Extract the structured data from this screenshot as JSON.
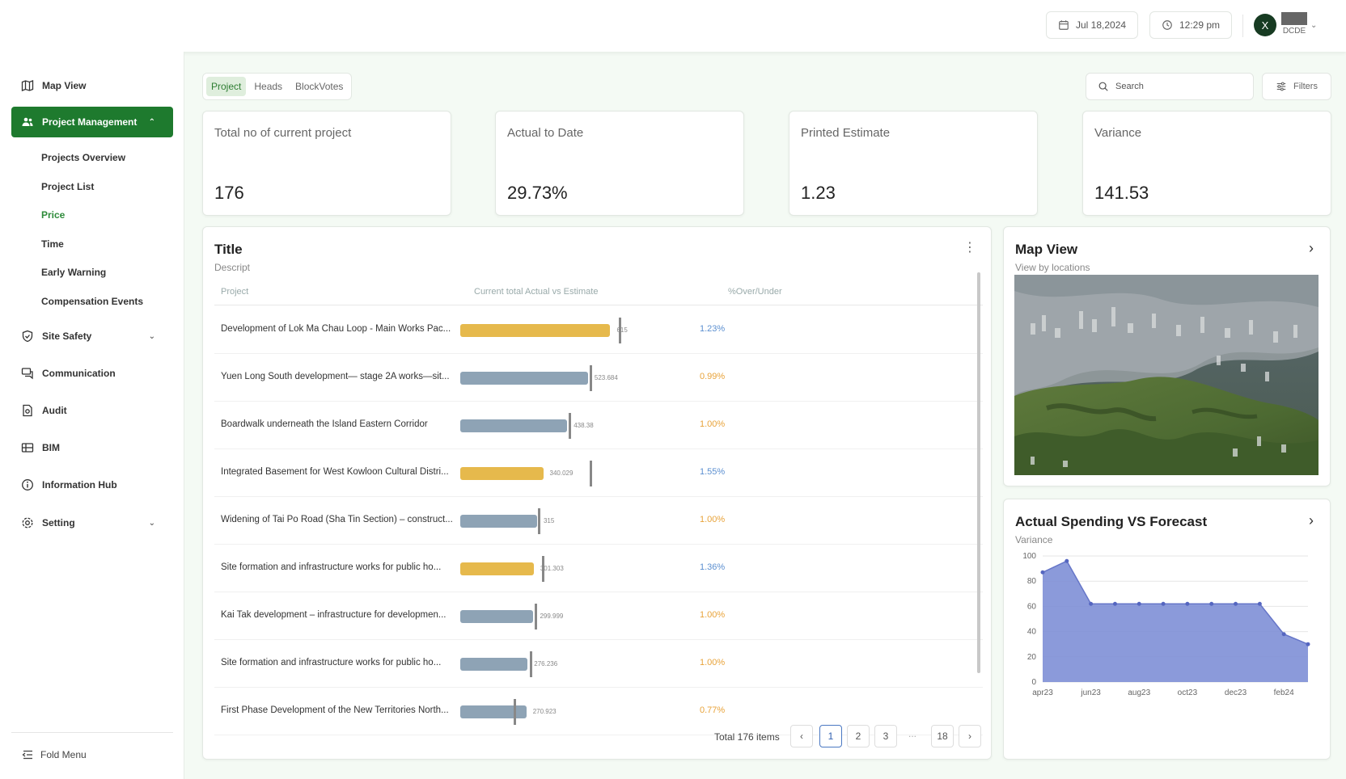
{
  "header": {
    "date": "Jul 18,2024",
    "time": "12:29 pm",
    "avatar_initial": "X",
    "user_label": "DCDE"
  },
  "sidebar": {
    "items": [
      {
        "label": "Map View",
        "icon": "map-icon"
      },
      {
        "label": "Project Management",
        "icon": "people-icon",
        "active": true
      },
      {
        "label": "Site Safety",
        "icon": "shield-icon"
      },
      {
        "label": "Communication",
        "icon": "chat-icon"
      },
      {
        "label": "Audit",
        "icon": "document-icon"
      },
      {
        "label": "BIM",
        "icon": "bim-icon"
      },
      {
        "label": "Information Hub",
        "icon": "info-icon"
      },
      {
        "label": "Setting",
        "icon": "gear-icon"
      }
    ],
    "sub_items": [
      "Projects Overview",
      "Project List",
      "Price",
      "Time",
      "Early Warning",
      "Compensation Events"
    ],
    "active_sub": "Price",
    "fold_label": "Fold Menu"
  },
  "tabs": [
    "Project",
    "Heads",
    "BlockVotes"
  ],
  "search_placeholder": "Search",
  "filters_label": "Filters",
  "stats": [
    {
      "label": "Total no of current project",
      "value": "176"
    },
    {
      "label": "Actual to Date",
      "value": "29.73%"
    },
    {
      "label": "Printed Estimate",
      "value": "1.23"
    },
    {
      "label": "Variance",
      "value": "141.53"
    }
  ],
  "table": {
    "title": "Title",
    "subtitle": "Descript",
    "columns": [
      "Project",
      "Current total Actual vs Estimate",
      "%Over/Under"
    ],
    "rows": [
      {
        "name": "Development of Lok Ma Chau Loop - Main Works Pac...",
        "actual": 615,
        "estimate": 650,
        "label": "615",
        "pct": "1.23%",
        "status": "over"
      },
      {
        "name": "Yuen Long South development— stage 2A works—sit...",
        "actual": 523.684,
        "estimate": 530,
        "label": "523.684",
        "pct": "0.99%",
        "status": "under"
      },
      {
        "name": "Boardwalk underneath the Island Eastern Corridor",
        "actual": 438.38,
        "estimate": 445,
        "label": "438.38",
        "pct": "1.00%",
        "status": "under"
      },
      {
        "name": "Integrated Basement for West Kowloon Cultural Distri...",
        "actual": 340.029,
        "estimate": 530,
        "label": "340.029",
        "pct": "1.55%",
        "status": "over"
      },
      {
        "name": "Widening of Tai Po Road (Sha Tin Section) – construct...",
        "actual": 315,
        "estimate": 320,
        "label": "315",
        "pct": "1.00%",
        "status": "under"
      },
      {
        "name": "Site formation and infrastructure works for public ho...",
        "actual": 301.303,
        "estimate": 335,
        "label": "301.303",
        "pct": "1.36%",
        "status": "over"
      },
      {
        "name": "Kai Tak development – infrastructure for developmen...",
        "actual": 299.999,
        "estimate": 305,
        "label": "299.999",
        "pct": "1.00%",
        "status": "under"
      },
      {
        "name": "Site formation and infrastructure works for public ho...",
        "actual": 276.236,
        "estimate": 285,
        "label": "276.236",
        "pct": "1.00%",
        "status": "under"
      },
      {
        "name": "First Phase Development of the New Territories North...",
        "actual": 270.923,
        "estimate": 220,
        "label": "270.923",
        "pct": "0.77%",
        "status": "under"
      }
    ],
    "total_label": "Total 176 items",
    "pages": [
      "1",
      "2",
      "3",
      "18"
    ],
    "current_page": "1",
    "ellipsis": "..."
  },
  "colors": {
    "accent": "#1e7a2e",
    "over_bar": "#e6b94c",
    "under_bar": "#8ea3b5",
    "over_text": "#5b8fd0",
    "under_text": "#e8a33a",
    "area_fill": "#7e8fd6"
  },
  "map_card": {
    "title": "Map View",
    "subtitle": "View by locations"
  },
  "forecast_card": {
    "title": "Actual Spending VS Forecast",
    "subtitle": "Variance"
  },
  "chart_data": {
    "type": "area",
    "x": [
      "apr23",
      "may23",
      "jun23",
      "jul23",
      "aug23",
      "sep23",
      "oct23",
      "nov23",
      "dec23",
      "jan24",
      "feb24",
      "mar24"
    ],
    "tick_labels": [
      "apr23",
      "jun23",
      "aug23",
      "oct23",
      "dec23",
      "feb24"
    ],
    "values": [
      87,
      96,
      62,
      62,
      62,
      62,
      62,
      62,
      62,
      62,
      38,
      30
    ],
    "ylim": [
      0,
      100
    ],
    "yticks": [
      0,
      20,
      40,
      60,
      80,
      100
    ],
    "grid": true,
    "xlabel": "",
    "ylabel": ""
  }
}
